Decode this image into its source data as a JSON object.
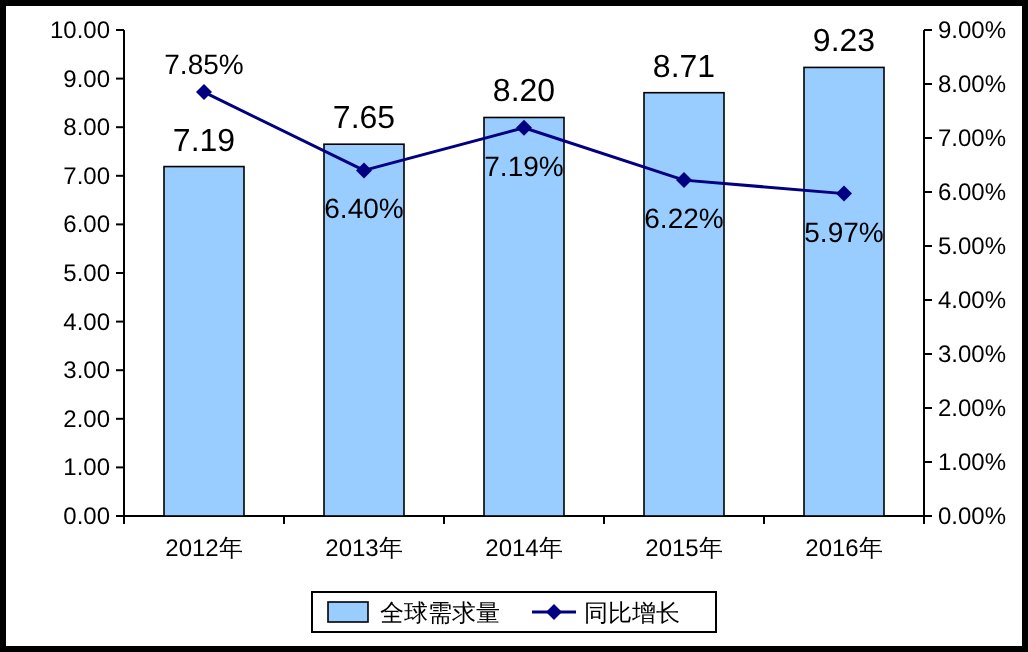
{
  "chart_data": {
    "type": "bar",
    "categories": [
      "2012年",
      "2013年",
      "2014年",
      "2015年",
      "2016年"
    ],
    "series": [
      {
        "name": "全球需求量",
        "color": "#99ccff",
        "values": [
          7.19,
          7.65,
          8.2,
          8.71,
          9.23
        ],
        "value_labels": [
          "7.19",
          "7.65",
          "8.20",
          "8.71",
          "9.23"
        ]
      },
      {
        "name": "同比增长",
        "type": "line",
        "axis": "y2",
        "color": "#000080",
        "marker": "diamond",
        "values": [
          7.85,
          6.4,
          7.19,
          6.22,
          5.97
        ],
        "value_labels": [
          "7.85%",
          "6.40%",
          "7.19%",
          "6.22%",
          "5.97%"
        ]
      }
    ],
    "ylim": [
      0,
      10
    ],
    "yticks": [
      {
        "value": 0,
        "label": "0.00"
      },
      {
        "value": 1,
        "label": "1.00"
      },
      {
        "value": 2,
        "label": "2.00"
      },
      {
        "value": 3,
        "label": "3.00"
      },
      {
        "value": 4,
        "label": "4.00"
      },
      {
        "value": 5,
        "label": "5.00"
      },
      {
        "value": 6,
        "label": "6.00"
      },
      {
        "value": 7,
        "label": "7.00"
      },
      {
        "value": 8,
        "label": "8.00"
      },
      {
        "value": 9,
        "label": "9.00"
      },
      {
        "value": 10,
        "label": "10.00"
      }
    ],
    "y2lim": [
      0,
      9
    ],
    "y2ticks": [
      {
        "value": 0,
        "label": "0.00%"
      },
      {
        "value": 1,
        "label": "1.00%"
      },
      {
        "value": 2,
        "label": "2.00%"
      },
      {
        "value": 3,
        "label": "3.00%"
      },
      {
        "value": 4,
        "label": "4.00%"
      },
      {
        "value": 5,
        "label": "5.00%"
      },
      {
        "value": 6,
        "label": "6.00%"
      },
      {
        "value": 7,
        "label": "7.00%"
      },
      {
        "value": 8,
        "label": "8.00%"
      },
      {
        "value": 9,
        "label": "9.00%"
      }
    ],
    "legend": "bottom"
  }
}
